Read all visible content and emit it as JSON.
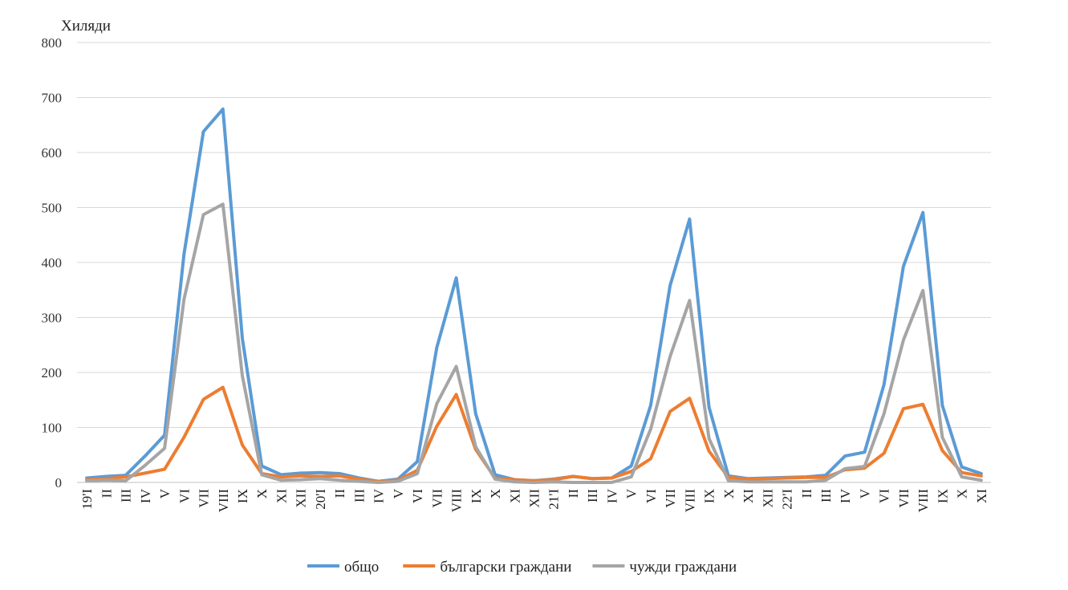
{
  "chart_data": {
    "type": "line",
    "unit_label": "Хиляди",
    "ylim": [
      0,
      800
    ],
    "yticks": [
      0,
      100,
      200,
      300,
      400,
      500,
      600,
      700,
      800
    ],
    "grid": true,
    "legend_position": "bottom",
    "categories": [
      "19'I",
      "II",
      "III",
      "IV",
      "V",
      "VI",
      "VII",
      "VIII",
      "IX",
      "X",
      "XI",
      "XII",
      "20'I",
      "II",
      "III",
      "IV",
      "V",
      "VI",
      "VII",
      "VIII",
      "IX",
      "X",
      "XI",
      "XII",
      "21'I",
      "II",
      "III",
      "IV",
      "V",
      "VI",
      "VII",
      "VIII",
      "IX",
      "X",
      "XI",
      "XII",
      "22'I",
      "II",
      "III",
      "IV",
      "V",
      "VI",
      "VII",
      "VIII",
      "IX",
      "X",
      "XI"
    ],
    "series": [
      {
        "name": "общо",
        "color": "#5B9BD5",
        "values": [
          8,
          11,
          13,
          48,
          86,
          415,
          638,
          679,
          262,
          30,
          14,
          17,
          18,
          16,
          8,
          2,
          6,
          38,
          245,
          372,
          125,
          14,
          5,
          3,
          6,
          11,
          7,
          8,
          30,
          140,
          358,
          479,
          137,
          12,
          7,
          8,
          9,
          10,
          13,
          48,
          55,
          178,
          393,
          491,
          140,
          28,
          16
        ]
      },
      {
        "name": "български граждани",
        "color": "#ED7D31",
        "values": [
          5,
          7,
          10,
          17,
          24,
          82,
          151,
          173,
          68,
          16,
          10,
          12,
          11,
          12,
          6,
          2,
          4,
          22,
          102,
          160,
          60,
          8,
          5,
          3,
          5,
          11,
          7,
          8,
          20,
          43,
          129,
          153,
          57,
          9,
          6,
          7,
          8,
          9,
          9,
          23,
          26,
          53,
          134,
          142,
          58,
          18,
          12
        ]
      },
      {
        "name": "чужди граждани",
        "color": "#A5A5A5",
        "values": [
          3,
          4,
          3,
          31,
          62,
          333,
          487,
          506,
          194,
          14,
          4,
          5,
          7,
          4,
          2,
          0,
          2,
          16,
          143,
          211,
          65,
          6,
          1,
          0,
          1,
          0,
          0,
          0,
          10,
          97,
          229,
          331,
          80,
          3,
          1,
          1,
          1,
          1,
          4,
          25,
          29,
          125,
          259,
          349,
          82,
          10,
          4
        ]
      }
    ]
  }
}
